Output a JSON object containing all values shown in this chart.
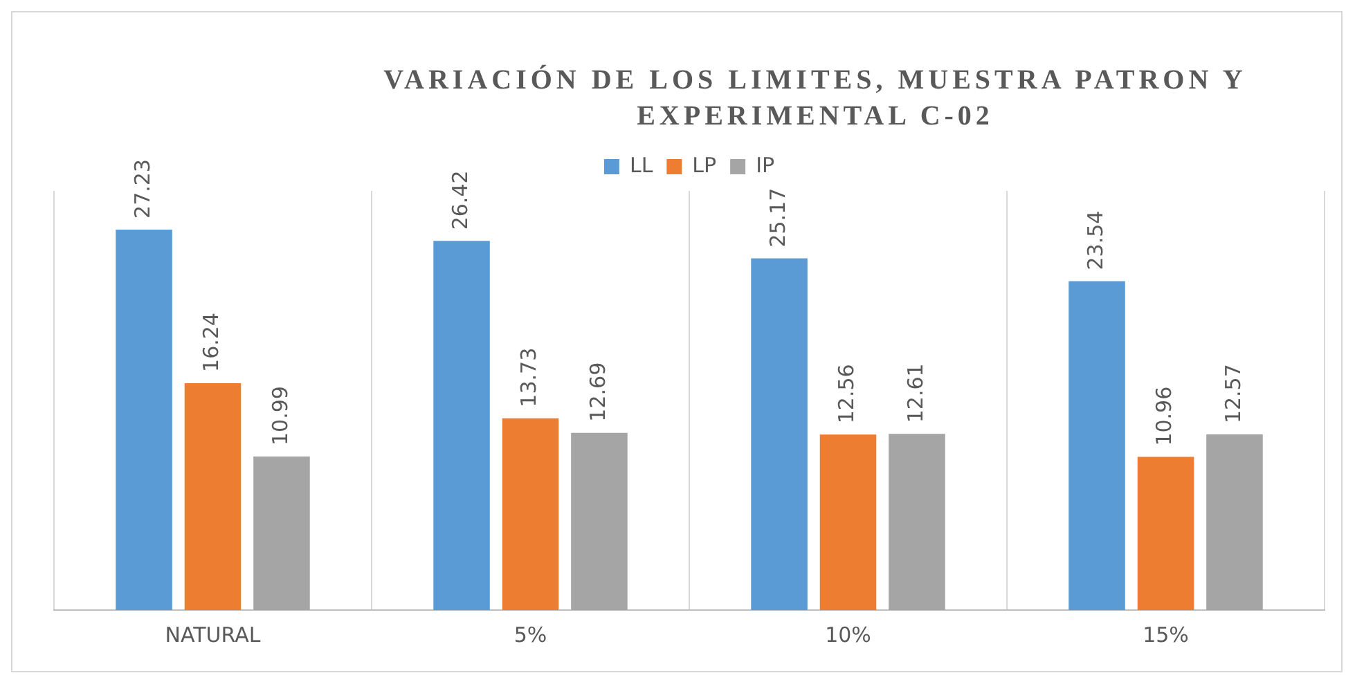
{
  "chart_data": {
    "type": "bar",
    "title": "VARIACIÓN DE LOS LIMITES, MUESTRA PATRON Y EXPERIMENTAL C-02",
    "categories": [
      "NATURAL",
      "5%",
      "10%",
      "15%"
    ],
    "series": [
      {
        "name": "LL",
        "color": "#5b9bd5",
        "values": [
          27.23,
          26.42,
          25.17,
          23.54
        ]
      },
      {
        "name": "LP",
        "color": "#ed7d31",
        "values": [
          16.24,
          13.73,
          12.56,
          10.96
        ]
      },
      {
        "name": "IP",
        "color": "#a5a5a5",
        "values": [
          10.99,
          12.69,
          12.61,
          12.57
        ]
      }
    ],
    "data_labels": true,
    "grid": "x",
    "legend": "top",
    "tick_labels": "x"
  }
}
